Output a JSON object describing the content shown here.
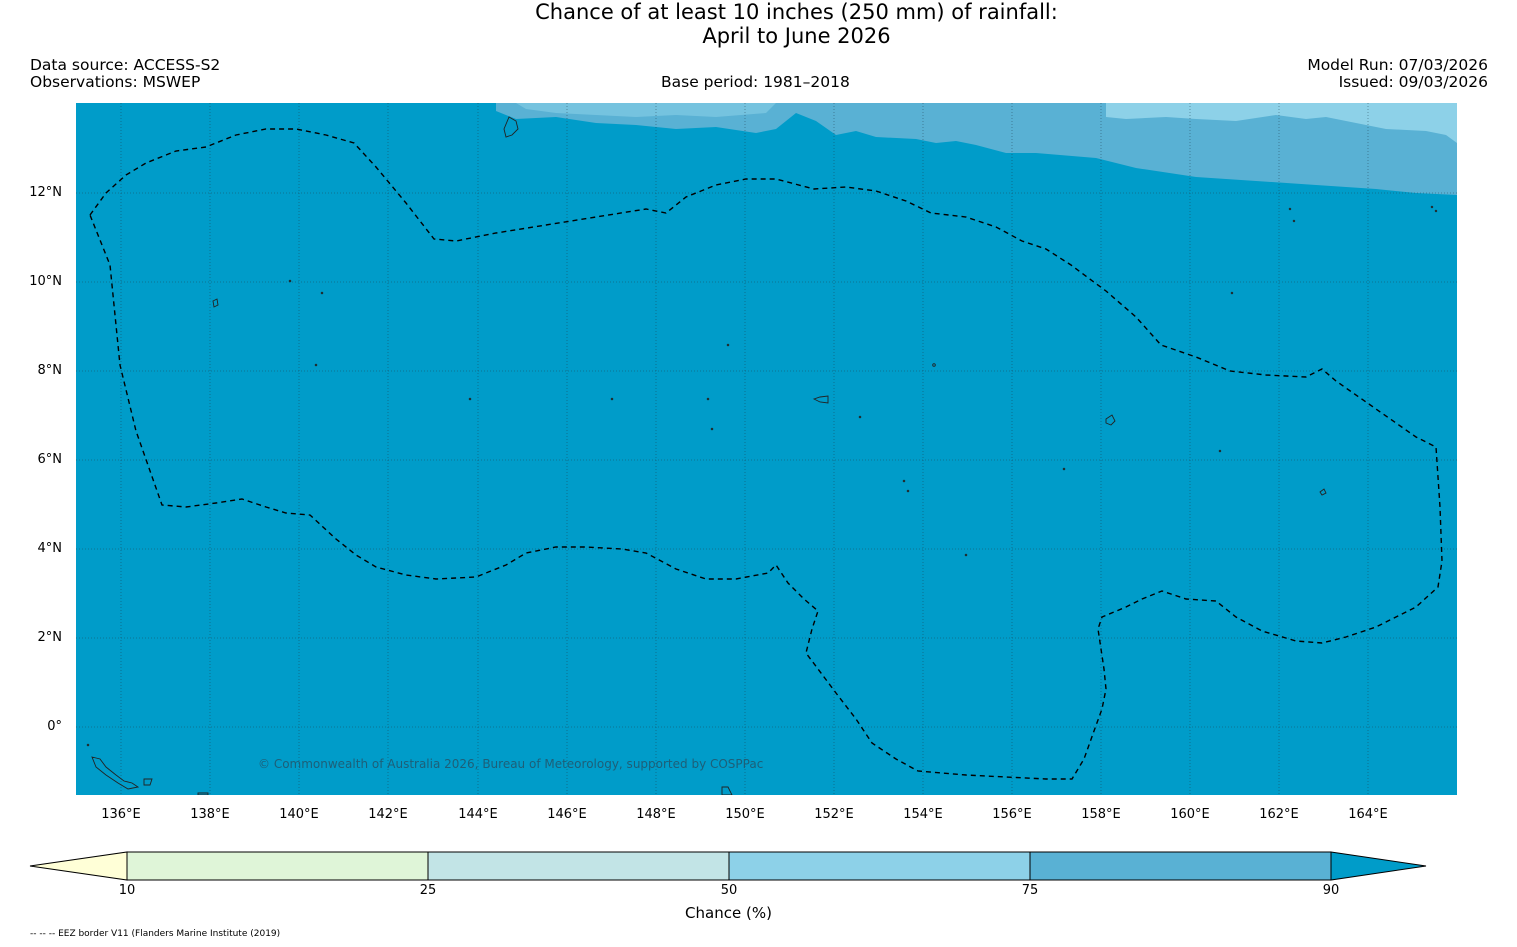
{
  "title": {
    "line1": "Chance of at least 10 inches (250  mm) of rainfall:",
    "line2": "April to June 2026"
  },
  "header": {
    "data_source": "Data source: ACCESS-S2",
    "observations": "Observations: MSWEP",
    "base_period": "Base period: 1981–2018",
    "model_run": "Model Run: 07/03/2026",
    "issued": "Issued: 09/03/2026"
  },
  "map": {
    "lat_labels": [
      "12°N",
      "10°N",
      "8°N",
      "6°N",
      "4°N",
      "2°N",
      "0°"
    ],
    "lon_labels": [
      "136°E",
      "138°E",
      "140°E",
      "142°E",
      "144°E",
      "146°E",
      "148°E",
      "150°E",
      "152°E",
      "154°E",
      "156°E",
      "158°E",
      "160°E",
      "162°E",
      "164°E"
    ],
    "copyright": "© Commonwealth of Australia 2026, Bureau of Meteorology, supported by COSPPac",
    "dominant_category": "90",
    "colors": {
      "cat_10_25": "#dff5d8",
      "cat_25_50": "#c2e4e6",
      "cat_50_75": "#8dd1e8",
      "cat_75_90": "#59b1d4",
      "cat_90_plus": "#009cc9",
      "below_10": "#ffffd7"
    }
  },
  "colorbar": {
    "ticks": [
      "10",
      "25",
      "50",
      "75",
      "90"
    ],
    "label": "Chance (%)"
  },
  "footnote": "-- -- -- EEZ border V11 (Flanders Marine Institute (2019)"
}
